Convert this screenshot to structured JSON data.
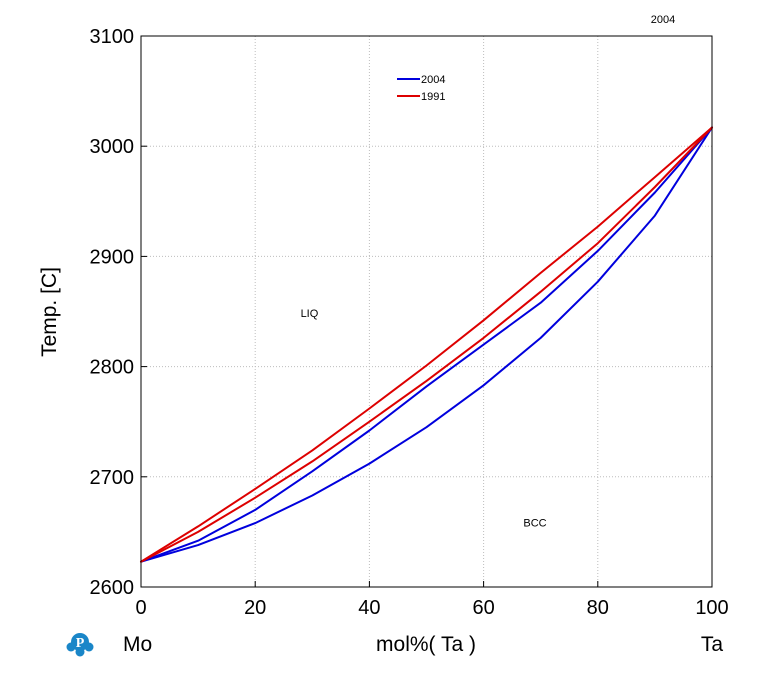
{
  "top_label": "2004",
  "logo_letter": "P",
  "element_left": "Mo",
  "element_right": "Ta",
  "chart_data": {
    "type": "line",
    "title": "",
    "xlabel": "mol%(  Ta  )",
    "ylabel": "Temp. [C]",
    "xlim": [
      0,
      100
    ],
    "ylim": [
      2600,
      3100
    ],
    "x_ticks": [
      0,
      20,
      40,
      60,
      80,
      100
    ],
    "y_ticks": [
      2600,
      2700,
      2800,
      2900,
      3000,
      3100
    ],
    "grid": true,
    "legend_position": "top-center",
    "legend": [
      {
        "name": "2004",
        "color": "#0000dd"
      },
      {
        "name": "1991",
        "color": "#dd0000"
      }
    ],
    "region_labels": [
      {
        "text": "LIQ",
        "x": 29.5,
        "y": 2845
      },
      {
        "text": "BCC",
        "x": 69,
        "y": 2655
      }
    ],
    "series": [
      {
        "name": "2004",
        "color": "#0000dd",
        "lines": [
          {
            "role": "liquidus",
            "points": [
              [
                0,
                2623
              ],
              [
                10,
                2642
              ],
              [
                20,
                2670
              ],
              [
                30,
                2705
              ],
              [
                40,
                2742
              ],
              [
                50,
                2782
              ],
              [
                60,
                2820
              ],
              [
                70,
                2858
              ],
              [
                80,
                2905
              ],
              [
                90,
                2958
              ],
              [
                100,
                3017
              ]
            ]
          },
          {
            "role": "solidus",
            "points": [
              [
                0,
                2623
              ],
              [
                10,
                2638
              ],
              [
                20,
                2658
              ],
              [
                30,
                2683
              ],
              [
                40,
                2712
              ],
              [
                50,
                2745
              ],
              [
                60,
                2783
              ],
              [
                70,
                2826
              ],
              [
                80,
                2877
              ],
              [
                90,
                2937
              ],
              [
                100,
                3017
              ]
            ]
          }
        ]
      },
      {
        "name": "1991",
        "color": "#dd0000",
        "lines": [
          {
            "role": "liquidus",
            "points": [
              [
                0,
                2623
              ],
              [
                10,
                2655
              ],
              [
                20,
                2689
              ],
              [
                30,
                2724
              ],
              [
                40,
                2762
              ],
              [
                50,
                2801
              ],
              [
                60,
                2842
              ],
              [
                70,
                2885
              ],
              [
                80,
                2927
              ],
              [
                90,
                2972
              ],
              [
                100,
                3017
              ]
            ]
          },
          {
            "role": "solidus",
            "points": [
              [
                0,
                2623
              ],
              [
                10,
                2650
              ],
              [
                20,
                2681
              ],
              [
                30,
                2714
              ],
              [
                40,
                2750
              ],
              [
                50,
                2787
              ],
              [
                60,
                2826
              ],
              [
                70,
                2868
              ],
              [
                80,
                2912
              ],
              [
                90,
                2963
              ],
              [
                100,
                3017
              ]
            ]
          }
        ]
      }
    ]
  }
}
